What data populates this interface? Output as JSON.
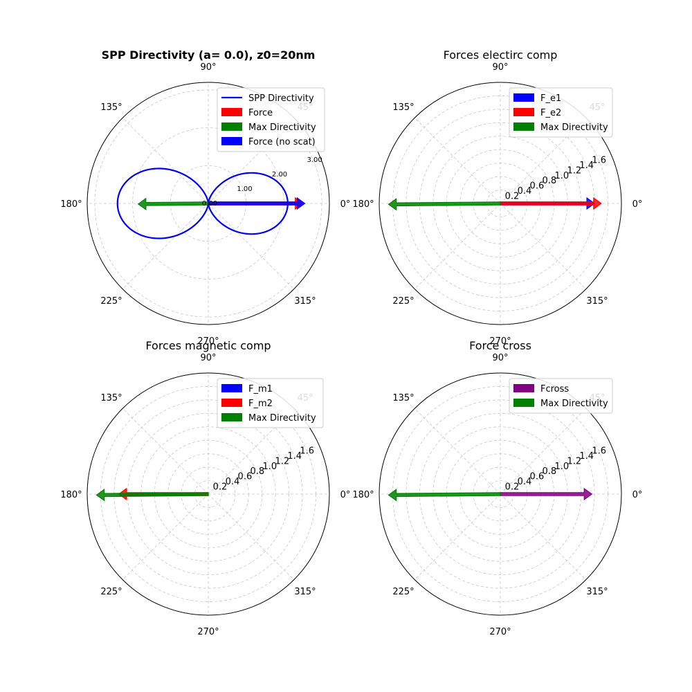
{
  "chart_data": [
    {
      "type": "polar",
      "title": "SPP Directivity (a= 0.0), z0=20nm",
      "title_bold": true,
      "angle_ticks": [
        "0°",
        "45°",
        "90°",
        "135°",
        "180°",
        "225°",
        "270°",
        "315°"
      ],
      "rmax": 3.2,
      "radial_ticks": [
        0,
        1,
        2,
        3
      ],
      "radial_tick_labels": [
        "0.00",
        "1.00",
        "2.00",
        "3.00"
      ],
      "radial_tick_font": "small",
      "grid": true,
      "legend_position": "top-right",
      "series": [
        {
          "name": "SPP Directivity",
          "kind": "line",
          "color": "#0000ff",
          "curve": "dipole-lobes",
          "theta_deg": [
            0,
            15,
            30,
            45,
            60,
            75,
            90,
            105,
            120,
            135,
            150,
            165,
            180,
            195,
            210,
            225,
            240,
            255,
            270,
            285,
            300,
            315,
            330,
            345
          ],
          "r": [
            2.1,
            2.03,
            1.82,
            1.48,
            1.05,
            0.54,
            0.02,
            0.6,
            1.2,
            1.7,
            2.08,
            2.32,
            2.4,
            2.32,
            2.08,
            1.7,
            1.2,
            0.6,
            0.02,
            0.54,
            1.05,
            1.48,
            1.82,
            2.03
          ]
        }
      ],
      "arrows": [
        {
          "name": "Force",
          "color": "#ff0000",
          "theta_deg": 0,
          "r": 2.5
        },
        {
          "name": "Max Directivity",
          "color": "#008000",
          "theta_deg": 180.5,
          "r": 1.85
        },
        {
          "name": "Force (no scat)",
          "color": "#0000ff",
          "theta_deg": 0,
          "r": 2.55
        }
      ],
      "legend": [
        {
          "label": "SPP Directivity",
          "swatch": "line",
          "color": "#0000ff"
        },
        {
          "label": "Force",
          "swatch": "patch",
          "color": "#ff0000"
        },
        {
          "label": "Max Directivity",
          "swatch": "patch",
          "color": "#008000"
        },
        {
          "label": "Force (no scat)",
          "swatch": "patch",
          "color": "#0000ff"
        }
      ]
    },
    {
      "type": "polar",
      "title": "Forces electirc comp",
      "title_bold": false,
      "angle_ticks": [
        "0°",
        "45°",
        "90°",
        "135°",
        "180°",
        "225°",
        "270°",
        "315°"
      ],
      "rmax": 1.8,
      "radial_ticks": [
        0.2,
        0.4,
        0.6,
        0.8,
        1.0,
        1.2,
        1.4,
        1.6
      ],
      "radial_tick_labels": [
        "0.2",
        "0.4",
        "0.6",
        "0.8",
        "1.0",
        "1.2",
        "1.4",
        "1.6"
      ],
      "radial_tick_font": "normal",
      "grid": true,
      "legend_position": "top-right",
      "series": [],
      "arrows": [
        {
          "name": "F_e1",
          "color": "#0000ff",
          "theta_deg": 0,
          "r": 1.4
        },
        {
          "name": "F_e2",
          "color": "#ff0000",
          "theta_deg": 0,
          "r": 1.5
        },
        {
          "name": "Max Directivity",
          "color": "#008000",
          "theta_deg": 180.5,
          "r": 1.66
        }
      ],
      "legend": [
        {
          "label": "F_e1",
          "swatch": "patch",
          "color": "#0000ff"
        },
        {
          "label": "F_e2",
          "swatch": "patch",
          "color": "#ff0000"
        },
        {
          "label": "Max Directivity",
          "swatch": "patch",
          "color": "#008000"
        }
      ]
    },
    {
      "type": "polar",
      "title": "Forces magnetic comp",
      "title_bold": false,
      "angle_ticks": [
        "0°",
        "45°",
        "90°",
        "135°",
        "180°",
        "225°",
        "270°",
        "315°"
      ],
      "rmax": 1.8,
      "radial_ticks": [
        0.2,
        0.4,
        0.6,
        0.8,
        1.0,
        1.2,
        1.4,
        1.6
      ],
      "radial_tick_labels": [
        "0.2",
        "0.4",
        "0.6",
        "0.8",
        "1.0",
        "1.2",
        "1.4",
        "1.6"
      ],
      "radial_tick_font": "normal",
      "grid": true,
      "legend_position": "top-right",
      "series": [],
      "arrows": [
        {
          "name": "F_m1",
          "color": "#0000ff",
          "theta_deg": 180,
          "r": 0.02
        },
        {
          "name": "F_m2",
          "color": "#ff0000",
          "theta_deg": 180,
          "r": 1.33
        },
        {
          "name": "Max Directivity",
          "color": "#008000",
          "theta_deg": 180.5,
          "r": 1.66
        }
      ],
      "legend": [
        {
          "label": "F_m1",
          "swatch": "patch",
          "color": "#0000ff"
        },
        {
          "label": "F_m2",
          "swatch": "patch",
          "color": "#ff0000"
        },
        {
          "label": "Max Directivity",
          "swatch": "patch",
          "color": "#008000"
        }
      ]
    },
    {
      "type": "polar",
      "title": "Force cross",
      "title_bold": false,
      "angle_ticks": [
        "0°",
        "45°",
        "90°",
        "135°",
        "180°",
        "225°",
        "270°",
        "315°"
      ],
      "rmax": 1.8,
      "radial_ticks": [
        0.2,
        0.4,
        0.6,
        0.8,
        1.0,
        1.2,
        1.4,
        1.6
      ],
      "radial_tick_labels": [
        "0.2",
        "0.4",
        "0.6",
        "0.8",
        "1.0",
        "1.2",
        "1.4",
        "1.6"
      ],
      "radial_tick_font": "normal",
      "grid": true,
      "legend_position": "top-right",
      "series": [],
      "arrows": [
        {
          "name": "Fcross",
          "color": "#800080",
          "theta_deg": 0,
          "r": 1.36
        },
        {
          "name": "Max Directivity",
          "color": "#008000",
          "theta_deg": 180.5,
          "r": 1.66
        }
      ],
      "legend": [
        {
          "label": "Fcross",
          "swatch": "patch",
          "color": "#800080"
        },
        {
          "label": "Max Directivity",
          "swatch": "patch",
          "color": "#008000"
        }
      ]
    }
  ]
}
